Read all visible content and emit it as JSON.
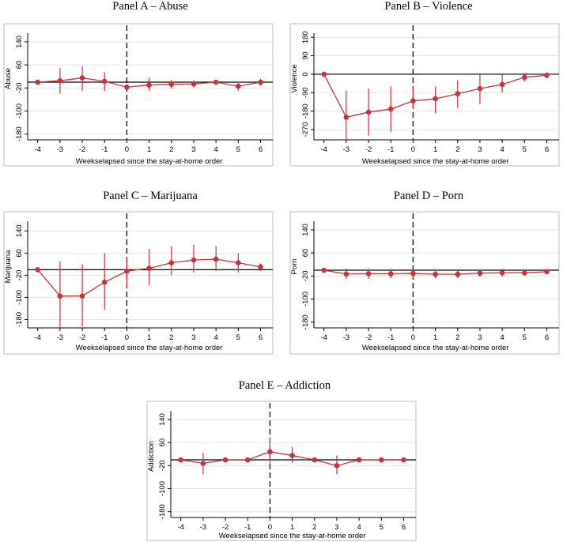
{
  "chart_data": [
    {
      "id": "A",
      "type": "scatter",
      "title": "Panel A – Abuse",
      "xlabel": "Weekselapsed since the stay-at-home order",
      "ylabel": "Abuse",
      "x": [
        -4,
        -3,
        -2,
        -1,
        0,
        1,
        2,
        3,
        4,
        5,
        6
      ],
      "xticks": [
        "-4",
        "-3",
        "-2",
        "-1",
        "0",
        "1",
        "2",
        "3",
        "4",
        "5",
        "6"
      ],
      "yticks": [
        140,
        60,
        -20,
        -100,
        -180
      ],
      "ylim": [
        -200,
        170
      ],
      "reference_line_y": 0,
      "event_line_x": 0,
      "series": [
        {
          "estimate": [
            0,
            5,
            15,
            3,
            -17,
            -10,
            -7,
            -6,
            0,
            -14,
            0
          ],
          "ci_low": [
            0,
            -40,
            -30,
            -30,
            -17,
            -30,
            -22,
            -18,
            0,
            -30,
            -12
          ],
          "ci_high": [
            0,
            50,
            55,
            35,
            -17,
            15,
            8,
            6,
            0,
            2,
            12
          ]
        }
      ],
      "color": "#c8323c"
    },
    {
      "id": "B",
      "type": "scatter",
      "title": "Panel B – Violence",
      "xlabel": "Weekselapsed since the stay-at-home order",
      "ylabel": "Violence",
      "x": [
        -4,
        -3,
        -2,
        -1,
        0,
        1,
        2,
        3,
        4,
        5,
        6
      ],
      "xticks": [
        "-4",
        "-3",
        "-2",
        "-1",
        "0",
        "1",
        "2",
        "3",
        "4",
        "5",
        "6"
      ],
      "yticks": [
        180,
        90,
        0,
        -90,
        -180,
        -270
      ],
      "ytick_labels": [
        "180",
        "90",
        "0",
        "-90",
        "-180",
        "-270"
      ],
      "ylim": [
        -320,
        200
      ],
      "reference_line_y": 0,
      "event_line_x": 0,
      "series": [
        {
          "estimate": [
            0,
            -210,
            -185,
            -170,
            -130,
            -120,
            -95,
            -70,
            -50,
            -15,
            -5
          ],
          "ci_low": [
            0,
            -320,
            -300,
            -280,
            -170,
            -190,
            -165,
            -145,
            -90,
            -35,
            -20
          ],
          "ci_high": [
            0,
            -80,
            -70,
            -60,
            -60,
            -60,
            -30,
            0,
            0,
            5,
            5
          ]
        }
      ],
      "color": "#c8323c"
    },
    {
      "id": "C",
      "type": "scatter",
      "title": "Panel C – Marijuana",
      "xlabel": "Weekselapsed since the stay-at-home order",
      "ylabel": "Marijuana",
      "x": [
        -4,
        -3,
        -2,
        -1,
        0,
        1,
        2,
        3,
        4,
        5,
        6
      ],
      "xticks": [
        "-4",
        "-3",
        "-2",
        "-1",
        "0",
        "1",
        "2",
        "3",
        "4",
        "5",
        "6"
      ],
      "yticks": [
        140,
        60,
        -20,
        -100,
        -180
      ],
      "ylim": [
        -210,
        175
      ],
      "reference_line_y": 0,
      "event_line_x": 0,
      "series": [
        {
          "estimate": [
            0,
            -95,
            -95,
            -45,
            -5,
            5,
            25,
            35,
            38,
            25,
            10
          ],
          "ci_low": [
            0,
            -210,
            -205,
            -145,
            -65,
            -55,
            -20,
            -10,
            -5,
            -10,
            -5
          ],
          "ci_high": [
            0,
            30,
            20,
            60,
            45,
            75,
            85,
            90,
            85,
            60,
            22
          ]
        }
      ],
      "color": "#c8323c"
    },
    {
      "id": "D",
      "type": "scatter",
      "title": "Panel D – Porn",
      "xlabel": "Weekselapsed since the stay-at-home order",
      "ylabel": "Porn",
      "x": [
        -4,
        -3,
        -2,
        -1,
        0,
        1,
        2,
        3,
        4,
        5,
        6
      ],
      "xticks": [
        "-4",
        "-3",
        "-2",
        "-1",
        "0",
        "1",
        "2",
        "3",
        "4",
        "5",
        "6"
      ],
      "yticks": [
        140,
        60,
        -20,
        -100,
        -180
      ],
      "ylim": [
        -200,
        170
      ],
      "reference_line_y": 0,
      "event_line_x": 0,
      "series": [
        {
          "estimate": [
            0,
            -13,
            -12,
            -12,
            -11,
            -14,
            -14,
            -10,
            -9,
            -9,
            -5
          ],
          "ci_low": [
            0,
            -30,
            -30,
            -28,
            -28,
            -28,
            -28,
            -22,
            -22,
            -18,
            -12
          ],
          "ci_high": [
            0,
            5,
            5,
            5,
            5,
            0,
            0,
            2,
            5,
            2,
            2
          ]
        }
      ],
      "color": "#c8323c"
    },
    {
      "id": "E",
      "type": "scatter",
      "title": "Panel E – Addiction",
      "xlabel": "Weekselapsed since the stay-at-home order",
      "ylabel": "Addiction",
      "x": [
        -4,
        -3,
        -2,
        -1,
        0,
        1,
        2,
        3,
        4,
        5,
        6
      ],
      "xticks": [
        "-4",
        "-3",
        "-2",
        "-1",
        "0",
        "1",
        "2",
        "3",
        "4",
        "5",
        "6"
      ],
      "yticks": [
        140,
        60,
        -20,
        -100,
        -180
      ],
      "ylim": [
        -200,
        170
      ],
      "reference_line_y": 0,
      "event_line_x": 0,
      "series": [
        {
          "estimate": [
            0,
            -12,
            0,
            0,
            28,
            15,
            0,
            -20,
            0,
            0,
            0
          ],
          "ci_low": [
            0,
            -50,
            0,
            0,
            -15,
            -10,
            0,
            -50,
            0,
            0,
            0
          ],
          "ci_high": [
            0,
            25,
            0,
            0,
            75,
            45,
            0,
            15,
            0,
            0,
            0
          ]
        }
      ],
      "color": "#c8323c"
    }
  ]
}
